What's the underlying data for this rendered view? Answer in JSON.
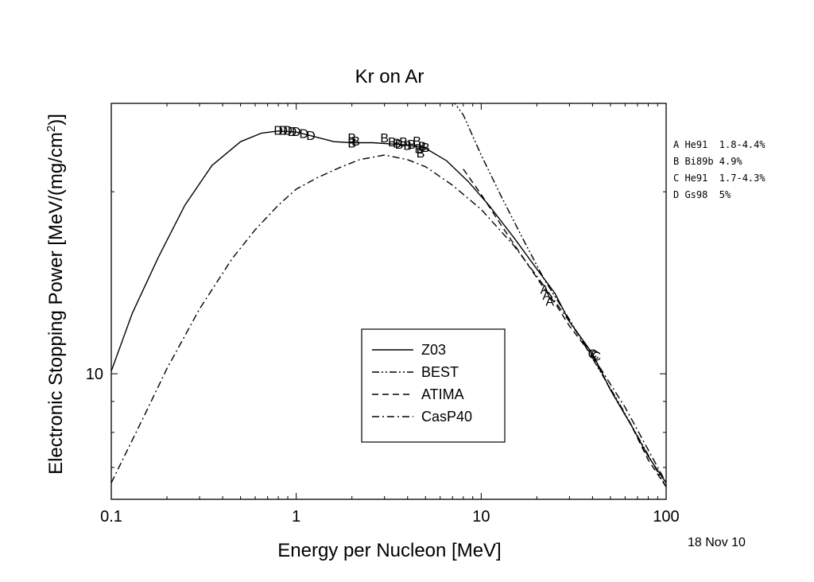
{
  "chart_data": {
    "type": "line",
    "title": "Kr on Ar",
    "xlabel": "Energy per Nucleon [MeV]",
    "ylabel_main": "Electronic Stopping Power [MeV/(mg/cm",
    "ylabel_sup": "2",
    "ylabel_end": ")]",
    "xscale": "log",
    "yscale": "log",
    "xlim": [
      0.1,
      100
    ],
    "ylim": [
      6.2,
      28
    ],
    "x_tick_labels": [
      {
        "value": 0.1,
        "label": "0.1"
      },
      {
        "value": 1,
        "label": "1"
      },
      {
        "value": 10,
        "label": "10"
      },
      {
        "value": 100,
        "label": "100"
      }
    ],
    "y_tick_labels": [
      {
        "value": 10,
        "label": "10"
      }
    ],
    "date": "18 Nov 10",
    "legend": {
      "position": "bottom-center",
      "entries": [
        {
          "name": "Z03",
          "dash": "solid"
        },
        {
          "name": "BEST",
          "dash": "dash-dot-dot"
        },
        {
          "name": "ATIMA",
          "dash": "dash"
        },
        {
          "name": "CasP40",
          "dash": "dash-dot"
        }
      ]
    },
    "references": [
      {
        "letter": "A",
        "text": "A He91  1.8-4.4%"
      },
      {
        "letter": "B",
        "text": "B Bi89b 4.9%"
      },
      {
        "letter": "C",
        "text": "C He91  1.7-4.3%"
      },
      {
        "letter": "D",
        "text": "D Gs98  5%"
      }
    ],
    "series": [
      {
        "name": "Z03",
        "dash": "solid",
        "x": [
          0.1,
          0.13,
          0.18,
          0.25,
          0.35,
          0.5,
          0.65,
          0.8,
          1.0,
          1.3,
          1.6,
          2.0,
          2.6,
          3.2,
          4.0,
          5.0,
          6.5,
          8.5,
          11,
          15,
          20,
          25,
          30,
          40,
          50,
          65,
          80,
          100
        ],
        "y": [
          10.1,
          12.6,
          15.6,
          19.0,
          22.1,
          24.2,
          25.0,
          25.2,
          25.1,
          24.6,
          24.2,
          24.1,
          24.1,
          24.0,
          23.9,
          23.6,
          22.5,
          20.8,
          19.0,
          16.8,
          14.9,
          13.6,
          12.2,
          10.8,
          9.4,
          8.2,
          7.3,
          6.6
        ]
      },
      {
        "name": "BEST",
        "dash": "dash-dot-dot",
        "x": [
          6.9,
          8,
          10,
          13,
          17,
          22,
          30,
          40,
          55,
          75,
          100
        ],
        "y": [
          28.5,
          26.8,
          23.0,
          19.5,
          16.6,
          14.3,
          12.3,
          10.6,
          9.0,
          7.6,
          6.5
        ]
      },
      {
        "name": "ATIMA",
        "dash": "dash",
        "x": [
          8,
          10,
          13,
          17,
          22,
          25,
          30,
          40,
          50,
          65,
          80,
          100
        ],
        "y": [
          21.8,
          19.8,
          17.5,
          15.5,
          13.8,
          13.1,
          12.0,
          10.7,
          9.4,
          8.2,
          7.2,
          6.5
        ]
      },
      {
        "name": "CasP40",
        "dash": "dash-dot",
        "x": [
          0.1,
          0.15,
          0.2,
          0.3,
          0.45,
          0.6,
          0.8,
          1.0,
          1.3,
          1.7,
          2.2,
          3.0,
          4.0,
          5.0,
          7.0,
          10,
          15,
          20,
          30,
          40,
          60,
          100
        ],
        "y": [
          6.6,
          8.5,
          10.2,
          12.8,
          15.5,
          17.3,
          19.0,
          20.2,
          21.1,
          21.9,
          22.6,
          23.0,
          22.6,
          22.0,
          20.5,
          18.7,
          16.3,
          14.5,
          12.2,
          10.7,
          8.8,
          6.6
        ]
      }
    ],
    "data_markers": [
      {
        "label": "D",
        "x": [
          0.8,
          0.85,
          0.9,
          0.95,
          1.0,
          1.1,
          1.2
        ],
        "y": [
          25.3,
          25.3,
          25.3,
          25.2,
          25.2,
          25.0,
          24.8
        ]
      },
      {
        "label": "B",
        "x": [
          2.0,
          2.0,
          2.1,
          3.0,
          3.3,
          3.5,
          3.6,
          3.8,
          4.0,
          4.2,
          4.5,
          4.6,
          4.7,
          4.8,
          5.0
        ],
        "y": [
          24.6,
          24.1,
          24.3,
          24.6,
          24.2,
          24.1,
          24.0,
          24.2,
          23.9,
          24.0,
          24.3,
          23.6,
          23.2,
          23.8,
          23.7
        ]
      },
      {
        "label": "A",
        "x": [
          22,
          22.6,
          23.5
        ],
        "y": [
          13.8,
          13.5,
          13.2
        ]
      },
      {
        "label": "C",
        "x": [
          40,
          41,
          42
        ],
        "y": [
          10.8,
          10.75,
          10.7
        ]
      }
    ]
  }
}
